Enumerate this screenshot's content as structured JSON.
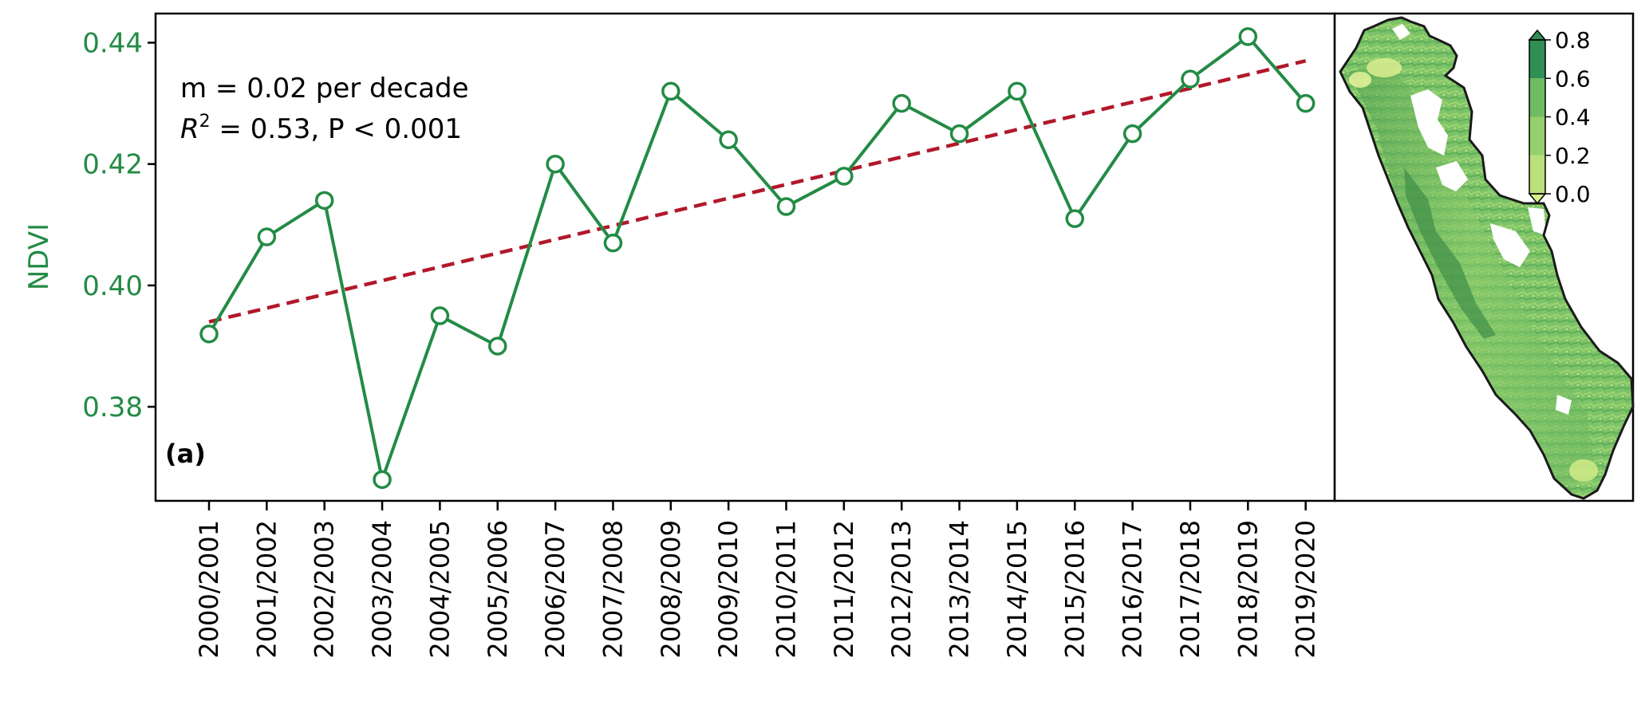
{
  "colors": {
    "series": "#238b45",
    "trend": "#b2182b",
    "axis": "#000000",
    "map_border": "#1a1a1a",
    "map_low": "#d9ef8b",
    "map_mid": "#78c679",
    "map_high": "#2f8f55"
  },
  "chart_data": {
    "type": "line",
    "title": "",
    "xlabel": "",
    "ylabel": "NDVI",
    "panel_label": "(a)",
    "annotation_line1": "m = 0.02 per decade",
    "annotation_line2_symbol": "R",
    "annotation_line2_exponent": "2",
    "annotation_line2_rest": " = 0.53, P < 0.001",
    "categories": [
      "2000/2001",
      "2001/2002",
      "2002/2003",
      "2003/2004",
      "2004/2005",
      "2005/2006",
      "2006/2007",
      "2007/2008",
      "2008/2009",
      "2009/2010",
      "2010/2011",
      "2011/2012",
      "2012/2013",
      "2013/2014",
      "2014/2015",
      "2015/2016",
      "2016/2017",
      "2017/2018",
      "2018/2019",
      "2019/2020"
    ],
    "series": [
      {
        "values": [
          0.392,
          0.408,
          0.414,
          0.368,
          0.395,
          0.39,
          0.42,
          0.407,
          0.432,
          0.424,
          0.413,
          0.418,
          0.43,
          0.425,
          0.432,
          0.411,
          0.425,
          0.434,
          0.441,
          0.43
        ],
        "marker": "open-circle",
        "line": "solid"
      },
      {
        "role": "trend",
        "line": "dashed",
        "start": 0.394,
        "end": 0.437
      }
    ],
    "ylim": [
      0.3645,
      0.4448
    ],
    "yticks": [
      "0.38",
      "0.40",
      "0.42",
      "0.44"
    ],
    "grid": false,
    "colorbar": {
      "ticks": [
        "0.0",
        "0.2",
        "0.4",
        "0.6",
        "0.8"
      ],
      "range": [
        0,
        0.8
      ],
      "extend": "both"
    },
    "inset": "map of study area shaded by NDVI"
  }
}
